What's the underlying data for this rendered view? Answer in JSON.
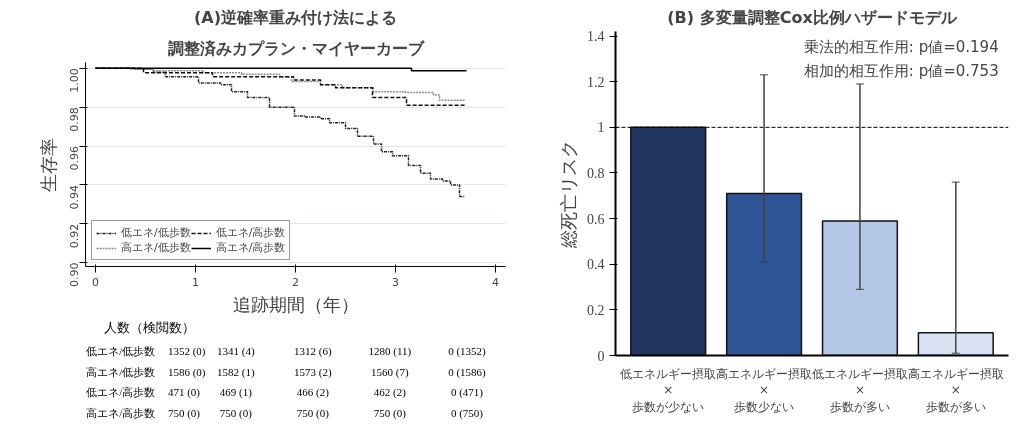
{
  "chart_data": [
    {
      "type": "step",
      "title": "(A)逆確率重み付け法による",
      "subtitle": "調整済みカプラン・マイヤーカーブ",
      "xlabel": "追跡期間（年）",
      "ylabel": "生存率",
      "xlim": [
        -0.1,
        4.1
      ],
      "xticks": [
        0,
        1,
        2,
        3,
        4
      ],
      "ylim": [
        0.898,
        1.003
      ],
      "yticks": [
        {
          "value": 0.9,
          "label": "0.90"
        },
        {
          "value": 0.92,
          "label": "0.92"
        },
        {
          "value": 0.94,
          "label": "0.94"
        },
        {
          "value": 0.96,
          "label": "0.96"
        },
        {
          "value": 0.98,
          "label": "0.98"
        },
        {
          "value": 1.0,
          "label": "1.00"
        }
      ],
      "grid": "y",
      "legend": "bottom left",
      "series": [
        {
          "name": "低エネ/低歩数",
          "color": "#222222",
          "line_style": "dashdot",
          "x": [
            0,
            0.39,
            0.58,
            0.7,
            1.03,
            1.25,
            1.36,
            1.52,
            1.74,
            1.99,
            2.09,
            2.25,
            2.34,
            2.5,
            2.62,
            2.78,
            2.86,
            2.97,
            3.13,
            3.25,
            3.35,
            3.47,
            3.55,
            3.64,
            3.69
          ],
          "values": [
            1.0,
            0.9995,
            0.998,
            0.9957,
            0.9924,
            0.9916,
            0.988,
            0.985,
            0.98,
            0.9754,
            0.975,
            0.974,
            0.972,
            0.969,
            0.965,
            0.961,
            0.957,
            0.955,
            0.95,
            0.946,
            0.943,
            0.942,
            0.94,
            0.934,
            0.934
          ]
        },
        {
          "name": "高エネ/低歩数",
          "color": "#8c8c8c",
          "line_style": "dotted",
          "x": [
            0,
            0.36,
            0.58,
            1.08,
            1.46,
            1.84,
            1.96,
            2.25,
            2.47,
            2.78,
            3.1,
            3.38,
            3.44,
            3.69
          ],
          "values": [
            1.0,
            0.9995,
            0.9988,
            0.9977,
            0.997,
            0.9955,
            0.9932,
            0.9916,
            0.99,
            0.988,
            0.9875,
            0.9863,
            0.9836,
            0.9836
          ]
        },
        {
          "name": "低エネ/高歩数",
          "color": "#111111",
          "line_style": "dashed",
          "x": [
            0,
            0.48,
            1.17,
            1.98,
            2.25,
            2.4,
            2.77,
            3.11,
            3.71
          ],
          "values": [
            1.0,
            0.9977,
            0.9957,
            0.994,
            0.9916,
            0.99,
            0.985,
            0.981,
            0.981
          ]
        },
        {
          "name": "高エネ/高歩数",
          "color": "#000000",
          "line_style": "solid",
          "x": [
            0,
            3.16,
            3.71
          ],
          "values": [
            1.0,
            0.9988,
            0.9988
          ]
        }
      ],
      "annotations": [
        "人数（検閲数）",
        "低エネ/低歩数",
        "1352 (0)",
        "1341 (4)",
        "1312 (6)",
        "1280 (11)",
        "0 (1352)",
        "高エネ/低歩数",
        "1586 (0)",
        "1582 (1)",
        "1573 (2)",
        "1560 (7)",
        "0 (1586)",
        "低エネ/高歩数",
        "471 (0)",
        "469 (1)",
        "466 (2)",
        "462 (2)",
        "0 (471)",
        "高エネ/高歩数",
        "750 (0)",
        "750 (0)",
        "750 (0)",
        "750 (0)",
        "0 (750)"
      ]
    },
    {
      "type": "bar",
      "title": "(B) 多変量調整Cox比例ハザードモデル",
      "ylabel": "総死亡リスク",
      "categories": [
        "低エネルギー摂取\n×\n歩数が少ない",
        "高エネルギー摂取\n×\n歩数少ない",
        "低エネルギー摂取\n×\n歩数が多い",
        "高エネルギー摂取\n×\n歩数が多い"
      ],
      "values": [
        1.0,
        0.71,
        0.59,
        0.1
      ],
      "colors": [
        "#22375f",
        "#2f5597",
        "#b4c7e7",
        "#dae3f3"
      ],
      "errors": [
        null,
        [
          0.41,
          1.23
        ],
        [
          0.29,
          1.19
        ],
        [
          0.01,
          0.76
        ]
      ],
      "ylim": [
        0,
        1.42
      ],
      "yticks": [
        0,
        0.2,
        0.4,
        0.6,
        0.8,
        1,
        1.2,
        1.4
      ],
      "ref_lines": [
        {
          "axis": "y",
          "value": 1,
          "color": "#000000",
          "line_style": "dashed"
        }
      ],
      "annotations": [
        "乗法的相互作用: p値=0.194",
        "相加的相互作用: p値=0.753"
      ]
    }
  ]
}
